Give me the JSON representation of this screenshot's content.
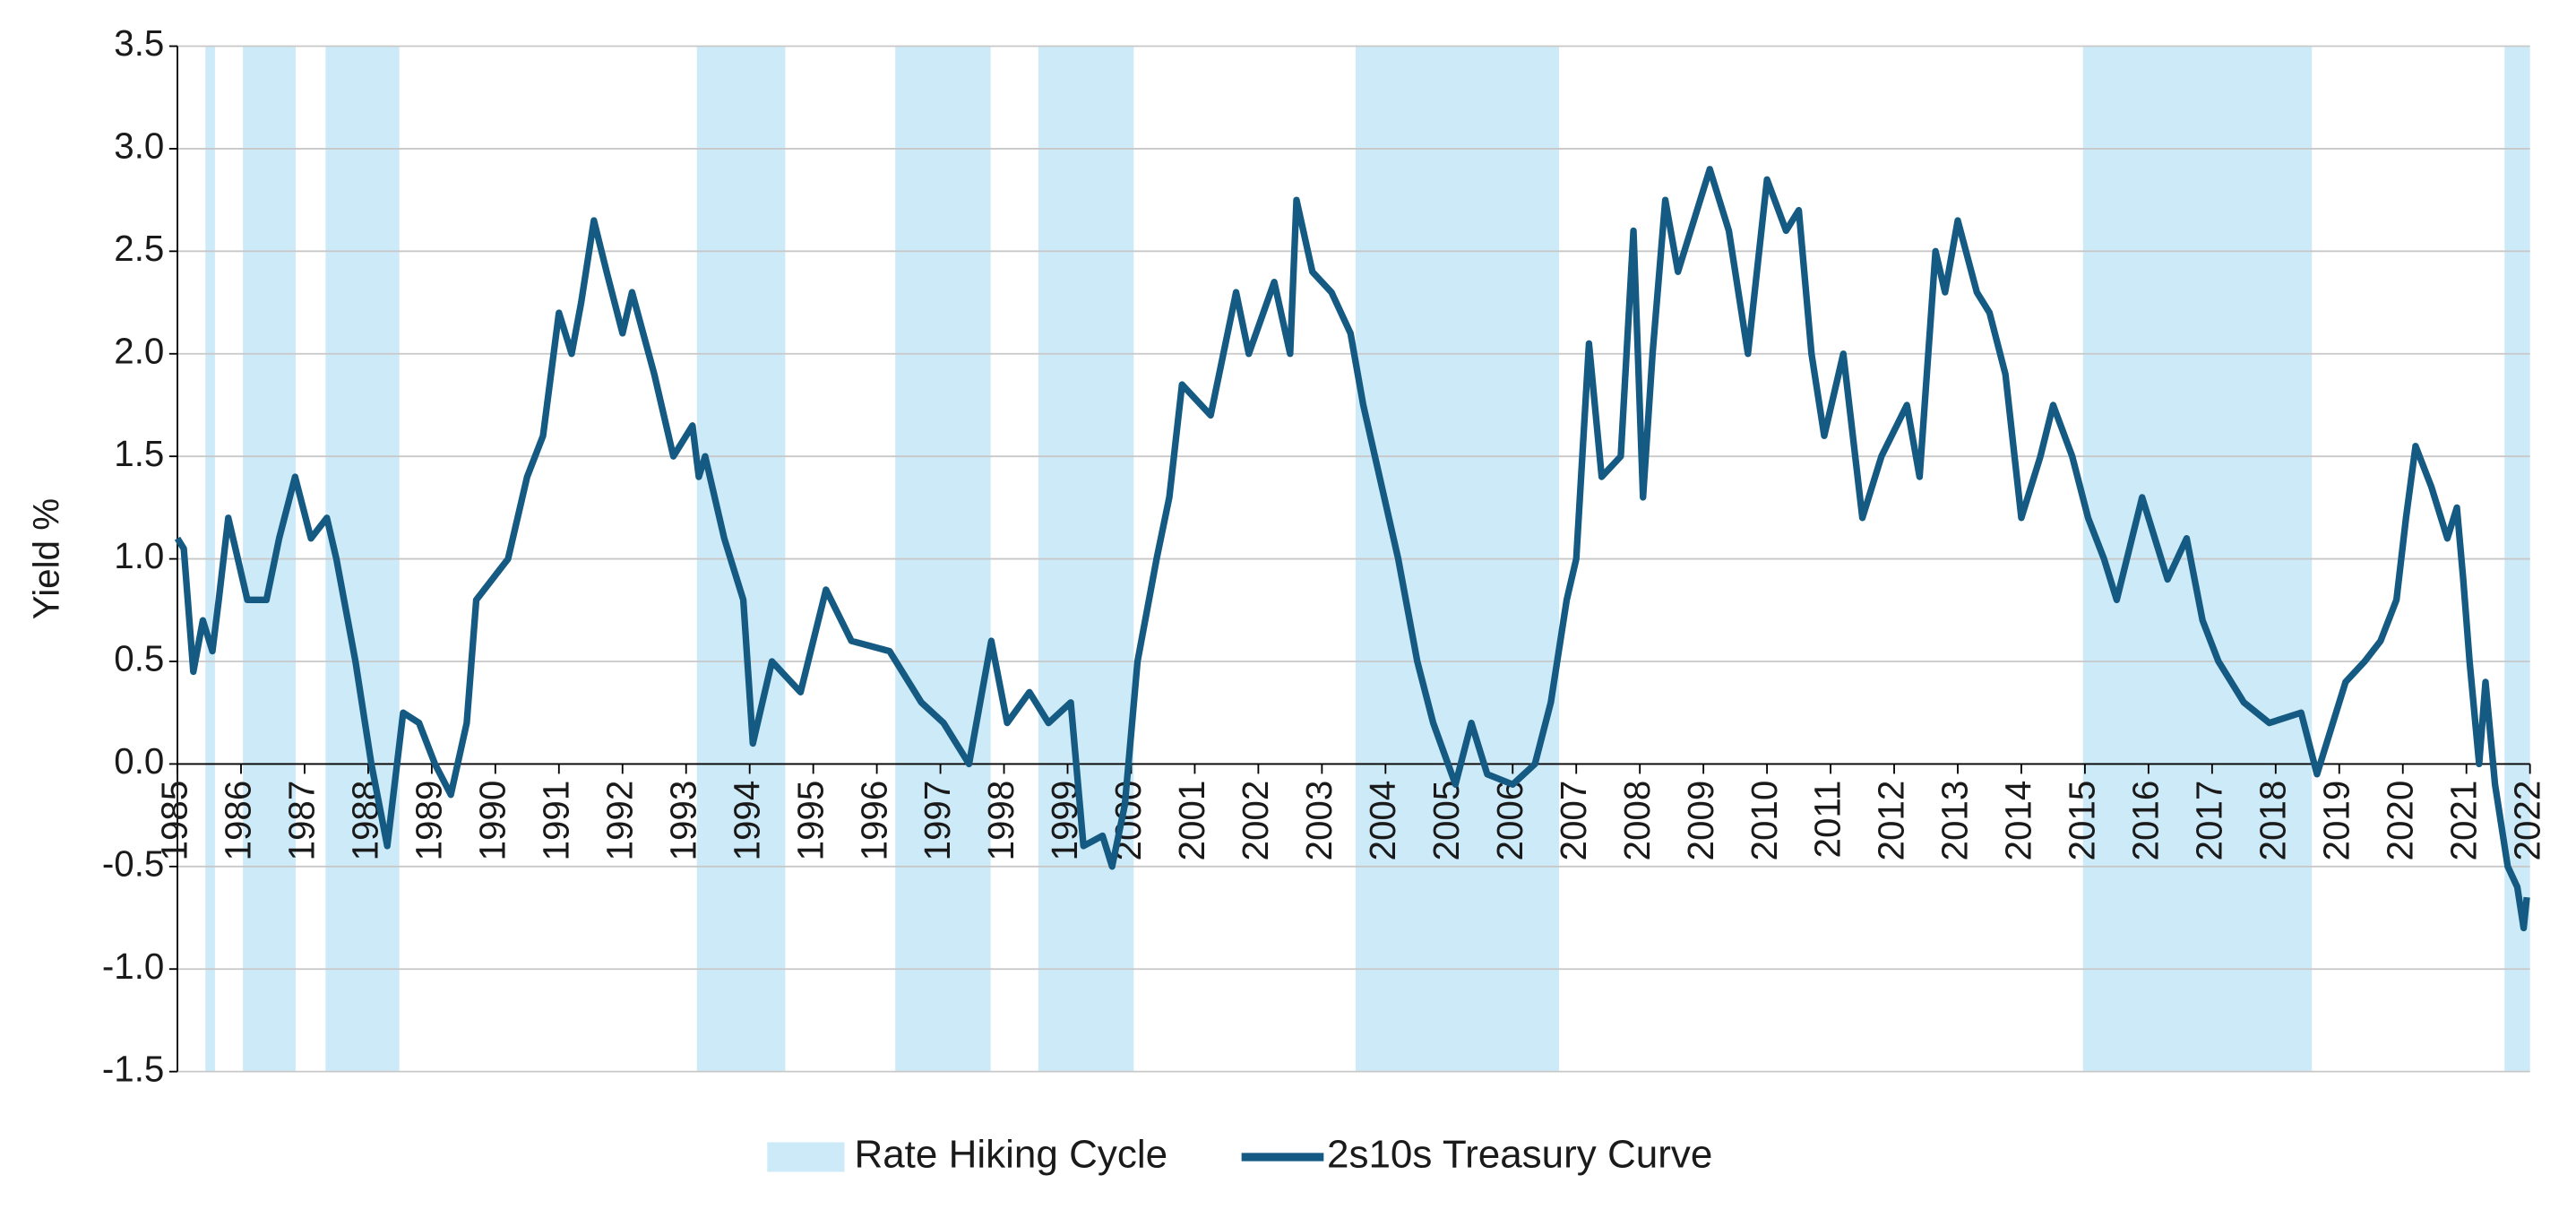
{
  "chart_data": {
    "type": "line",
    "y_label": "Yield %",
    "xlim": [
      1985,
      2022
    ],
    "ylim": [
      -1.5,
      3.5
    ],
    "xticks": [
      1985,
      1986,
      1987,
      1988,
      1989,
      1990,
      1991,
      1992,
      1993,
      1994,
      1995,
      1996,
      1997,
      1998,
      1999,
      2000,
      2001,
      2002,
      2003,
      2004,
      2005,
      2006,
      2007,
      2008,
      2009,
      2010,
      2011,
      2012,
      2013,
      2014,
      2015,
      2016,
      2017,
      2018,
      2019,
      2020,
      2021,
      2022
    ],
    "yticks": [
      {
        "value": -1.5,
        "label": "-1.5"
      },
      {
        "value": -1,
        "label": "-1.0"
      },
      -0.5,
      {
        "value": 0,
        "label": "0.0"
      },
      0.5,
      {
        "value": 1,
        "label": "1.0"
      },
      1.5,
      {
        "value": 2,
        "label": "2.0"
      },
      2.5,
      {
        "value": 3,
        "label": "3.0"
      },
      3.5
    ],
    "grid": true,
    "legend": "bottom",
    "shaded_regions": {
      "name": "Rate Hiking Cycle",
      "color": "#cdeaf8",
      "ranges": [
        [
          1985.44,
          1985.59
        ],
        [
          1986.03,
          1986.86
        ],
        [
          1987.33,
          1988.49
        ],
        [
          1993.17,
          1994.56
        ],
        [
          1996.29,
          1997.79
        ],
        [
          1998.54,
          2000.04
        ],
        [
          2003.53,
          2006.73
        ],
        [
          2014.97,
          2018.57
        ],
        [
          2021.6,
          2022
        ]
      ]
    },
    "series": [
      {
        "name": "2s10s Treasury Curve",
        "color": "#145a82",
        "x": [
          1985.0,
          1985.1,
          1985.25,
          1985.4,
          1985.55,
          1985.65,
          1985.8,
          1985.95,
          1986.1,
          1986.4,
          1986.6,
          1986.85,
          1987.1,
          1987.35,
          1987.5,
          1987.8,
          1988.05,
          1988.3,
          1988.55,
          1988.8,
          1989.05,
          1989.3,
          1989.55,
          1989.7,
          1989.95,
          1990.2,
          1990.5,
          1990.75,
          1991.0,
          1991.2,
          1991.35,
          1991.55,
          1991.75,
          1992.0,
          1992.15,
          1992.5,
          1992.8,
          1993.1,
          1993.2,
          1993.3,
          1993.6,
          1993.9,
          1994.05,
          1994.35,
          1994.8,
          1995.2,
          1995.6,
          1996.2,
          1996.7,
          1997.05,
          1997.45,
          1997.8,
          1998.05,
          1998.4,
          1998.7,
          1999.05,
          1999.25,
          1999.55,
          1999.7,
          1999.9,
          2000.1,
          2000.4,
          2000.6,
          2000.8,
          2001.25,
          2001.65,
          2001.85,
          2002.25,
          2002.5,
          2002.6,
          2002.85,
          2003.15,
          2003.45,
          2003.65,
          2004.2,
          2004.5,
          2004.75,
          2005.1,
          2005.35,
          2005.6,
          2006.0,
          2006.35,
          2006.6,
          2006.85,
          2007.0,
          2007.2,
          2007.4,
          2007.7,
          2007.9,
          2008.05,
          2008.2,
          2008.4,
          2008.6,
          2008.8,
          2009.1,
          2009.4,
          2009.7,
          2010.0,
          2010.3,
          2010.5,
          2010.7,
          2010.9,
          2011.2,
          2011.5,
          2011.8,
          2012.2,
          2012.4,
          2012.65,
          2012.8,
          2013.0,
          2013.3,
          2013.5,
          2013.75,
          2014.0,
          2014.3,
          2014.5,
          2014.8,
          2015.05,
          2015.3,
          2015.5,
          2015.9,
          2016.3,
          2016.6,
          2016.85,
          2017.1,
          2017.5,
          2017.9,
          2018.4,
          2018.65,
          2018.9,
          2019.1,
          2019.4,
          2019.65,
          2019.9,
          2020.05,
          2020.2,
          2020.45,
          2020.7,
          2020.85,
          2020.95,
          2021.05,
          2021.2,
          2021.3,
          2021.45,
          2021.65,
          2021.8,
          2021.9,
          2021.95
        ],
        "values": [
          1.1,
          1.05,
          0.45,
          0.7,
          0.55,
          0.8,
          1.2,
          1.0,
          0.8,
          0.8,
          1.1,
          1.4,
          1.1,
          1.2,
          1.0,
          0.5,
          0.0,
          -0.4,
          0.25,
          0.2,
          0.0,
          -0.15,
          0.2,
          0.8,
          0.9,
          1.0,
          1.4,
          1.6,
          2.2,
          2.0,
          2.25,
          2.65,
          2.4,
          2.1,
          2.3,
          1.9,
          1.5,
          1.65,
          1.4,
          1.5,
          1.1,
          0.8,
          0.1,
          0.5,
          0.35,
          0.85,
          0.6,
          0.55,
          0.3,
          0.2,
          0.0,
          0.6,
          0.2,
          0.35,
          0.2,
          0.3,
          -0.4,
          -0.35,
          -0.5,
          -0.2,
          0.5,
          1.0,
          1.3,
          1.85,
          1.7,
          2.3,
          2.0,
          2.35,
          2.0,
          2.75,
          2.4,
          2.3,
          2.1,
          1.75,
          1.0,
          0.5,
          0.2,
          -0.1,
          0.2,
          -0.05,
          -0.1,
          0.0,
          0.3,
          0.8,
          1.0,
          2.05,
          1.4,
          1.5,
          2.6,
          1.3,
          2.0,
          2.75,
          2.4,
          2.6,
          2.9,
          2.6,
          2.0,
          2.85,
          2.6,
          2.7,
          2.0,
          1.6,
          2.0,
          1.2,
          1.5,
          1.75,
          1.4,
          2.5,
          2.3,
          2.65,
          2.3,
          2.2,
          1.9,
          1.2,
          1.5,
          1.75,
          1.5,
          1.2,
          1.0,
          0.8,
          1.3,
          0.9,
          1.1,
          0.7,
          0.5,
          0.3,
          0.2,
          0.25,
          -0.05,
          0.2,
          0.4,
          0.5,
          0.6,
          0.8,
          1.2,
          1.55,
          1.35,
          1.1,
          1.25,
          0.9,
          0.5,
          0.0,
          0.4,
          -0.1,
          -0.5,
          -0.6,
          -0.8,
          -0.65
        ]
      }
    ]
  }
}
